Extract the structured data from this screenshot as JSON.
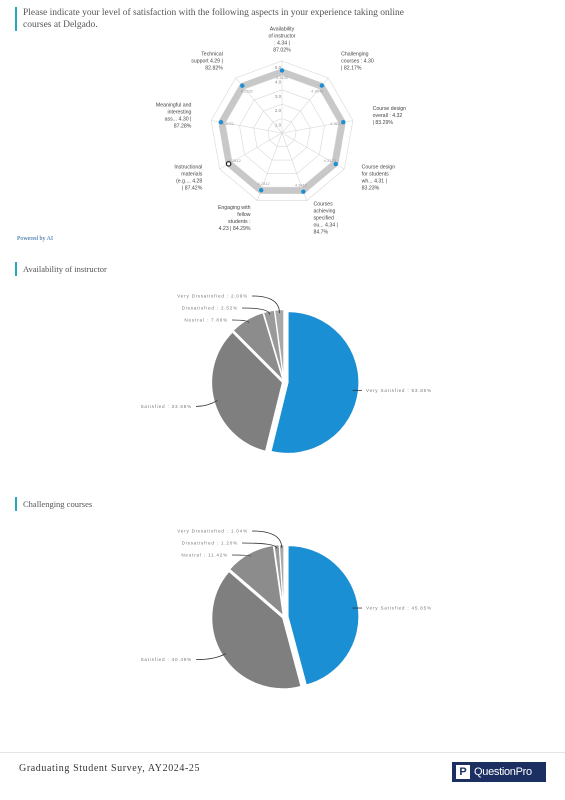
{
  "page": {
    "question": "Please indicate your level of satisfaction with the following aspects in your experience taking online courses at Delgado.",
    "powered_by": "Powered by AI",
    "footer_title": "Graduating Student Survey, AY2024-25",
    "logo_text": "QuestionPro",
    "logo_mark": "P"
  },
  "chart_data": [
    {
      "type": "radar",
      "title": "",
      "scale_max": 5,
      "scale_ticks": [
        "5.0",
        "4.0",
        "3.0",
        "2.0",
        "1.0"
      ],
      "band": [
        4.0,
        4.5
      ],
      "band_color": "#c8c8c8",
      "point_color": "#1a8fd3",
      "axes": [
        {
          "label": "Availability of instructor : 4.34 | 87.02%",
          "value": 4.34,
          "value_label": "4.3432"
        },
        {
          "label": "Challenging courses : 4.30 | 82.17%",
          "value": 4.3,
          "value_label": "4.3042"
        },
        {
          "label": "Course design overall : 4.32 | 83.29%",
          "value": 4.32,
          "value_label": "4.3221"
        },
        {
          "label": "Course design for students wh... 4.31 | 83.23%",
          "value": 4.31,
          "value_label": "4.3123"
        },
        {
          "label": "Courses achieving specified ou... 4.34 | 84.7%",
          "value": 4.34,
          "value_label": "4.3412"
        },
        {
          "label": "Engaging with fellow students : 4.23 | 84.29%",
          "value": 4.23,
          "value_label": "4.2312"
        },
        {
          "label": "Instructional materials (e.g.... 4.28 | 87.42%",
          "value": 4.28,
          "value_label": "4.2812"
        },
        {
          "label": "Meaningful and interesting ass... 4.30 | 87.28%",
          "value": 4.3,
          "value_label": "4.3021"
        },
        {
          "label": "Technical support 4.29 | 82.82%",
          "value": 4.29,
          "value_label": "4.2932"
        }
      ]
    },
    {
      "type": "pie",
      "title": "Availability of instructor",
      "slices": [
        {
          "label": "Very Satisfied : 53.85%",
          "value": 53.85,
          "color": "#1a8fd3",
          "side": "right"
        },
        {
          "label": "Satisfied : 33.68%",
          "value": 33.68,
          "color": "#7f7f7f",
          "side": "left"
        },
        {
          "label": "Neutral : 7.86%",
          "value": 7.86,
          "color": "#8c8c8c",
          "side": "left"
        },
        {
          "label": "Dissatisfied : 2.52%",
          "value": 2.52,
          "color": "#9a9a9a",
          "side": "left"
        },
        {
          "label": "Very Dissatisfied : 2.09%",
          "value": 2.09,
          "color": "#a8a8a8",
          "side": "left"
        }
      ]
    },
    {
      "type": "pie",
      "title": "Challenging courses",
      "slices": [
        {
          "label": "Very Satisfied : 45.85%",
          "value": 45.85,
          "color": "#1a8fd3",
          "side": "right"
        },
        {
          "label": "Satisfied : 40.49%",
          "value": 40.49,
          "color": "#7f7f7f",
          "side": "left"
        },
        {
          "label": "Neutral : 11.42%",
          "value": 11.42,
          "color": "#8c8c8c",
          "side": "left"
        },
        {
          "label": "Dissatisfied : 1.20%",
          "value": 1.2,
          "color": "#9a9a9a",
          "side": "left"
        },
        {
          "label": "Very Dissatisfied : 1.04%",
          "value": 1.04,
          "color": "#a8a8a8",
          "side": "left"
        }
      ]
    }
  ]
}
